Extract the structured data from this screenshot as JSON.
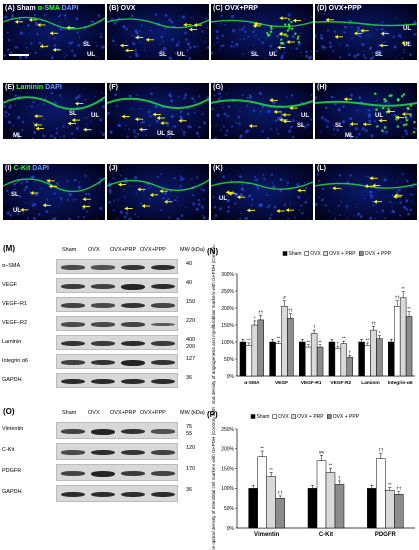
{
  "micro": {
    "rows": [
      {
        "stain_main": "α-SMA",
        "stain_dapi": "DAPI",
        "panels": [
          {
            "id": "(A)",
            "cond": "Sham"
          },
          {
            "id": "(B)",
            "cond": "OVX"
          },
          {
            "id": "(C)",
            "cond": "OVX+PRP"
          },
          {
            "id": "(D)",
            "cond": "OVX+PPP"
          }
        ]
      },
      {
        "stain_main": "Laminin",
        "stain_dapi": "DAPI",
        "panels": [
          {
            "id": "(E)",
            "cond": ""
          },
          {
            "id": "(F)",
            "cond": ""
          },
          {
            "id": "(G)",
            "cond": ""
          },
          {
            "id": "(H)",
            "cond": ""
          }
        ]
      },
      {
        "stain_main": "C-Kit",
        "stain_dapi": "DAPI",
        "panels": [
          {
            "id": "(I)",
            "cond": ""
          },
          {
            "id": "(J)",
            "cond": ""
          },
          {
            "id": "(K)",
            "cond": ""
          },
          {
            "id": "(L)",
            "cond": ""
          }
        ]
      }
    ],
    "tags": {
      "sl": "SL",
      "ul": "UL",
      "ml": "ML"
    }
  },
  "blotM": {
    "title": "(M)",
    "headers": [
      "Sham",
      "OVX",
      "OVX+PRP",
      "OVX+PPP"
    ],
    "mw_header": "MW (kDa)",
    "rows": [
      {
        "label": "α–SMA",
        "mw": "40"
      },
      {
        "label": "VEGF",
        "mw": "40"
      },
      {
        "label": "VEGF–R1",
        "mw": "150"
      },
      {
        "label": "VEGF–R2",
        "mw": "220"
      },
      {
        "label": "Laminin",
        "mw": "400\n200"
      },
      {
        "label": "Integrin α6",
        "mw": "127"
      },
      {
        "label": "GAPDH",
        "mw": "36"
      }
    ]
  },
  "blotO": {
    "title": "(O)",
    "headers": [
      "Sham",
      "OVX",
      "OVX+PRP",
      "OVX+PPP"
    ],
    "mw_header": "MW (kDa)",
    "rows": [
      {
        "label": "Vimentin",
        "mw": "75\n55"
      },
      {
        "label": "C-Kit",
        "mw": "120"
      },
      {
        "label": "PDGFR",
        "mw": "170"
      },
      {
        "label": "GAPDH",
        "mw": "36"
      }
    ]
  },
  "chart_data": [
    {
      "panel": "(N)",
      "type": "bar",
      "ylabel": "The optical density of angiogenesis and myofibroblast markers with GAPDH (Control=100%)",
      "yticks": [
        "0%",
        "50%",
        "100%",
        "150%",
        "200%",
        "250%",
        "300%"
      ],
      "ylim": [
        0,
        300
      ],
      "categories": [
        "α-SMA",
        "VEGF",
        "VEGF-R1",
        "VEGF-R2",
        "Laminin",
        "Integrin-α6"
      ],
      "legend_position": "top-right",
      "series": [
        {
          "name": "Sham",
          "color": "#000000",
          "values": [
            100,
            100,
            100,
            100,
            100,
            100
          ]
        },
        {
          "name": "OVX",
          "color": "#ffffff",
          "values": [
            90,
            95,
            85,
            80,
            90,
            205
          ]
        },
        {
          "name": "OVX + PRP",
          "color": "#d9d9d9",
          "values": [
            150,
            205,
            125,
            95,
            135,
            230
          ]
        },
        {
          "name": "OVX + PPP",
          "color": "#8c8c8c",
          "values": [
            165,
            170,
            85,
            55,
            110,
            175
          ]
        }
      ],
      "annotations": [
        "**",
        "*",
        "††",
        "**",
        "#",
        "††",
        "**",
        "†",
        "**",
        "†",
        "**",
        "†",
        "**",
        "††",
        "*",
        "††",
        "**",
        "**",
        "††",
        "**"
      ]
    },
    {
      "panel": "(P)",
      "type": "bar",
      "ylabel": "The optical density of interstitial cell markers with GAPDH (Control=100%)",
      "yticks": [
        "0%",
        "50%",
        "100%",
        "150%",
        "200%",
        "250%"
      ],
      "ylim": [
        0,
        250
      ],
      "categories": [
        "Vimentin",
        "C-Kit",
        "PDGFR"
      ],
      "legend_position": "top",
      "series": [
        {
          "name": "Sham",
          "color": "#000000",
          "values": [
            100,
            100,
            100
          ]
        },
        {
          "name": "OVX",
          "color": "#ffffff",
          "values": [
            180,
            170,
            175
          ]
        },
        {
          "name": "OVX + PRP",
          "color": "#d9d9d9",
          "values": [
            130,
            140,
            95
          ]
        },
        {
          "name": "OVX + PPP",
          "color": "#8c8c8c",
          "values": [
            75,
            110,
            85
          ]
        }
      ],
      "annotations": [
        "**",
        "**",
        "††",
        "##",
        "**",
        "†",
        "††",
        "**",
        "††",
        "††"
      ]
    }
  ]
}
